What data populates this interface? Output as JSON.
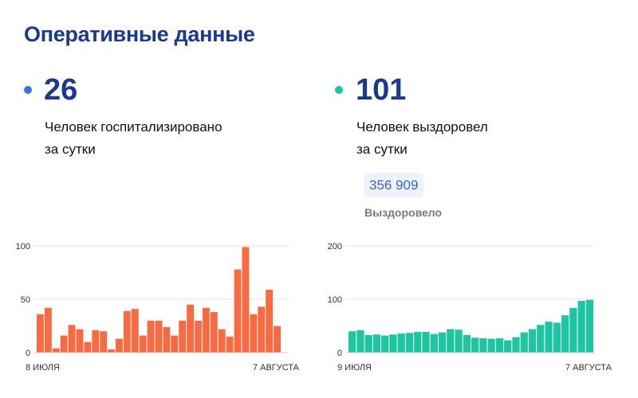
{
  "header": {
    "title": "Оперативные данные"
  },
  "stats": {
    "hospitalized": {
      "value": "26",
      "line1": "Человек госпитализировано",
      "line2": "за сутки",
      "color": "#3f6fd8"
    },
    "recovered": {
      "value": "101",
      "line1": "Человек выздоровел",
      "line2": "за сутки",
      "color": "#1fc4a0",
      "total": "356 909",
      "total_label": "Выздоровело"
    }
  },
  "chart_data": [
    {
      "type": "bar",
      "color": "#f86b42",
      "ylim": [
        0,
        100
      ],
      "yticks": [
        "0",
        "50",
        "100"
      ],
      "x_start_label": "8 ИЮЛЯ",
      "x_end_label": "7 АВГУСТА",
      "values": [
        36,
        42,
        4,
        16,
        26,
        22,
        10,
        21,
        20,
        3,
        13,
        39,
        41,
        16,
        30,
        30,
        24,
        16,
        30,
        45,
        30,
        42,
        38,
        22,
        15,
        78,
        99,
        36,
        43,
        59,
        25
      ],
      "grid": true
    },
    {
      "type": "bar",
      "color": "#1fc4a0",
      "ylim": [
        0,
        200
      ],
      "yticks": [
        "0",
        "100",
        "200"
      ],
      "x_start_label": "9 ИЮЛЯ",
      "x_end_label": "7 АВГУСТА",
      "values": [
        40,
        42,
        33,
        34,
        32,
        34,
        36,
        37,
        39,
        39,
        35,
        38,
        44,
        43,
        33,
        28,
        27,
        26,
        27,
        23,
        29,
        38,
        44,
        52,
        58,
        56,
        70,
        84,
        97,
        99
      ],
      "grid": true
    }
  ]
}
